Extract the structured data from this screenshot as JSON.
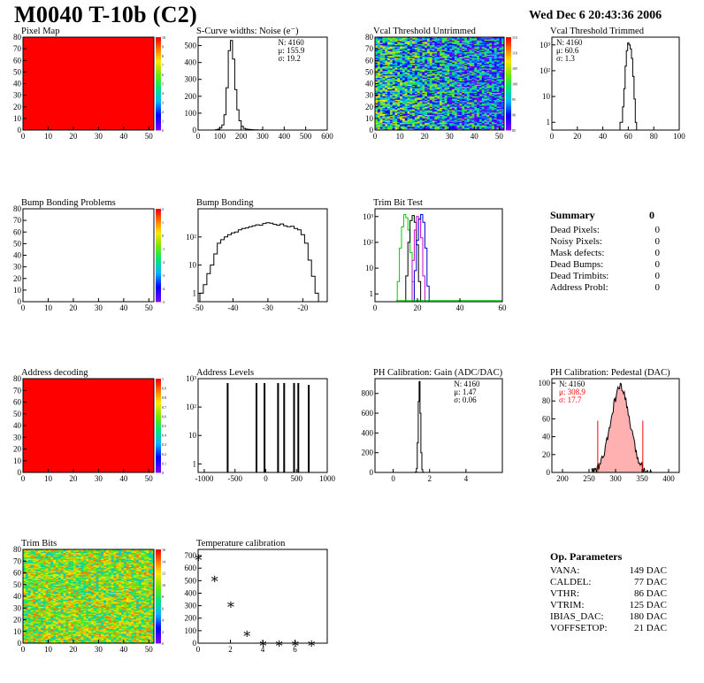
{
  "header": {
    "title": "M0040 T-10b (C2)",
    "timestamp": "Wed Dec  6 20:43:36 2006"
  },
  "summary": {
    "title": "Summary",
    "total": "0",
    "rows": [
      {
        "label": "Dead Pixels:",
        "value": "0"
      },
      {
        "label": "Noisy Pixels:",
        "value": "0"
      },
      {
        "label": "Mask defects:",
        "value": "0"
      },
      {
        "label": "Dead Bumps:",
        "value": "0"
      },
      {
        "label": "Dead Trimbits:",
        "value": "0"
      },
      {
        "label": "Address Probl:",
        "value": "0"
      }
    ]
  },
  "op_parameters": {
    "title": "Op. Parameters",
    "rows": [
      {
        "label": "VANA:",
        "value": "149 DAC"
      },
      {
        "label": "CALDEL:",
        "value": "77 DAC"
      },
      {
        "label": "VTHR:",
        "value": "86 DAC"
      },
      {
        "label": "VTRIM:",
        "value": "125 DAC"
      },
      {
        "label": "IBIAS_DAC:",
        "value": "180 DAC"
      },
      {
        "label": "VOFFSETOP:",
        "value": "21 DAC"
      }
    ]
  },
  "colors": {
    "frame": "#000000",
    "fill_red": "#ff0000",
    "pedestal_red": "#ff0000",
    "green": "#00cc00",
    "blue": "#0000cc",
    "magenta": "#cc00cc"
  },
  "chart_data": [
    {
      "id": "pixel-map",
      "type": "heatmap",
      "title": "Pixel Map",
      "xlim": [
        0,
        52
      ],
      "ylim": [
        0,
        80
      ],
      "xticks": [
        0,
        10,
        20,
        30,
        40,
        50
      ],
      "yticks": [
        0,
        10,
        20,
        30,
        40,
        50,
        60,
        70,
        80
      ],
      "uniform_value": 10,
      "zlim": [
        0,
        10
      ],
      "zticks": [
        "10",
        "9",
        "8",
        "7",
        "6",
        "5",
        "4",
        "3",
        "2",
        "1",
        "0"
      ]
    },
    {
      "id": "scurve-noise",
      "type": "histogram",
      "title": "S-Curve widths: Noise (e⁻)",
      "xlim": [
        0,
        600
      ],
      "ylim": [
        0,
        550
      ],
      "log": false,
      "xticks": [
        0,
        100,
        200,
        300,
        400,
        500,
        600
      ],
      "yticks": [
        0,
        100,
        200,
        300,
        400,
        500
      ],
      "stats": [
        "N: 4160",
        "μ: 155.9",
        "σ: 19.2"
      ],
      "bins_x": [
        85,
        95,
        105,
        115,
        125,
        135,
        145,
        155,
        165,
        175,
        185,
        195,
        205,
        215,
        225,
        235,
        245,
        255,
        265,
        275,
        285,
        295,
        305
      ],
      "bins_y": [
        2,
        5,
        12,
        30,
        90,
        250,
        470,
        530,
        420,
        240,
        120,
        55,
        22,
        10,
        6,
        4,
        3,
        2,
        1,
        1,
        0,
        1,
        0
      ]
    },
    {
      "id": "vcal-untrimmed",
      "type": "heatmap",
      "title": "Vcal Threshold Untrimmed",
      "xlim": [
        0,
        52
      ],
      "ylim": [
        0,
        80
      ],
      "xticks": [
        0,
        10,
        20,
        30,
        40,
        50
      ],
      "yticks": [
        0,
        10,
        20,
        30,
        40,
        50,
        60,
        70,
        80
      ],
      "zlim": [
        80,
        118
      ],
      "zticks": [
        "115",
        "110",
        "105",
        "100",
        "95",
        "90",
        "85"
      ],
      "pattern": "noise-gradient"
    },
    {
      "id": "vcal-trimmed",
      "type": "histogram",
      "title": "Vcal Threshold Trimmed",
      "xlim": [
        0,
        100
      ],
      "ylim": [
        0.5,
        2000
      ],
      "log": true,
      "xticks": [
        0,
        20,
        40,
        60,
        80,
        100
      ],
      "yticks": [
        1,
        10,
        100,
        1000
      ],
      "stats": [
        "N: 4160",
        "μ: 60.6",
        "σ:  1.3"
      ],
      "bins_x": [
        54,
        55,
        56,
        57,
        58,
        59,
        60,
        61,
        62,
        63,
        64,
        65,
        66
      ],
      "bins_y": [
        1,
        1,
        4,
        20,
        150,
        600,
        1200,
        1000,
        700,
        300,
        60,
        8,
        1
      ]
    },
    {
      "id": "bump-problems",
      "type": "heatmap",
      "title": "Bump Bonding Problems",
      "xlim": [
        0,
        52
      ],
      "ylim": [
        0,
        80
      ],
      "xticks": [
        0,
        10,
        20,
        30,
        40,
        50
      ],
      "yticks": [
        0,
        10,
        20,
        30,
        40,
        50,
        60,
        70,
        80
      ],
      "zlim": [
        -5,
        2
      ],
      "zticks": [
        "2",
        "1",
        "0",
        "-1",
        "-2",
        "-3",
        "-4",
        "-5"
      ],
      "empty": true
    },
    {
      "id": "bump-bonding",
      "type": "histogram",
      "title": "Bump Bonding",
      "xlim": [
        -50,
        -13
      ],
      "ylim": [
        0.5,
        1000
      ],
      "log": true,
      "xticks": [
        -50,
        -40,
        -30,
        -20
      ],
      "yticks": [
        1,
        10,
        100
      ],
      "bins_x": [
        -49,
        -48,
        -47,
        -46,
        -45,
        -44,
        -43,
        -42,
        -41,
        -40,
        -39,
        -38,
        -37,
        -36,
        -35,
        -34,
        -33,
        -32,
        -31,
        -30,
        -29,
        -28,
        -27,
        -26,
        -25,
        -24,
        -23,
        -22,
        -21,
        -20,
        -19,
        -18,
        -17,
        -16
      ],
      "bins_y": [
        1,
        2,
        5,
        10,
        25,
        60,
        80,
        100,
        120,
        140,
        150,
        180,
        200,
        210,
        230,
        250,
        270,
        260,
        300,
        320,
        310,
        280,
        260,
        290,
        250,
        230,
        240,
        200,
        180,
        120,
        60,
        15,
        4,
        1
      ]
    },
    {
      "id": "trim-bit-test",
      "type": "histogram",
      "title": "Trim Bit Test",
      "xlim": [
        0,
        60
      ],
      "ylim": [
        0.5,
        2000
      ],
      "log": true,
      "xticks": [
        0,
        20,
        40,
        60
      ],
      "yticks": [
        1,
        10,
        100,
        1000
      ],
      "series": [
        {
          "name": "",
          "color": "#00cc00",
          "bins_x": [
            10,
            11,
            12,
            13,
            14,
            15,
            16,
            17,
            18,
            19,
            20
          ],
          "bins_y": [
            0.3,
            3,
            60,
            400,
            1200,
            900,
            300,
            40,
            3,
            0.3,
            0.3
          ]
        },
        {
          "name": "",
          "color": "#000000",
          "bins_x": [
            14,
            15,
            16,
            17,
            18,
            19,
            20,
            21,
            22
          ],
          "bins_y": [
            0.3,
            5,
            100,
            700,
            1100,
            600,
            80,
            3,
            0.3
          ]
        },
        {
          "name": "",
          "color": "#cc00cc",
          "bins_x": [
            17,
            18,
            19,
            20,
            21,
            22,
            23,
            24
          ],
          "bins_y": [
            0.3,
            20,
            300,
            1000,
            800,
            150,
            5,
            0.3
          ]
        },
        {
          "name": "",
          "color": "#0000cc",
          "bins_x": [
            18,
            19,
            20,
            21,
            22,
            23,
            24,
            25,
            26
          ],
          "bins_y": [
            0.3,
            8,
            120,
            800,
            1200,
            600,
            60,
            2,
            0.3
          ]
        }
      ]
    },
    {
      "id": "address-decoding",
      "type": "heatmap",
      "title": "Address decoding",
      "xlim": [
        0,
        52
      ],
      "ylim": [
        0,
        80
      ],
      "xticks": [
        0,
        10,
        20,
        30,
        40,
        50
      ],
      "yticks": [
        0,
        10,
        20,
        30,
        40,
        50,
        60,
        70,
        80
      ],
      "uniform_value": 1,
      "zlim": [
        0,
        1
      ],
      "zticks": [
        "1",
        "0.9",
        "0.8",
        "0.7",
        "0.6",
        "0.5",
        "0.4",
        "0.3",
        "0.2",
        "0.1",
        "0"
      ]
    },
    {
      "id": "address-levels",
      "type": "histogram",
      "title": "Address Levels",
      "xlim": [
        -1100,
        1000
      ],
      "ylim": [
        0.5,
        1000
      ],
      "log": true,
      "xticks": [
        -1000,
        -500,
        0,
        500,
        1000
      ],
      "yticks": [
        1,
        10,
        100,
        1000
      ],
      "peaks_x": [
        -620,
        -150,
        -20,
        200,
        300,
        460,
        530,
        700
      ],
      "peaks_y": [
        700,
        700,
        700,
        700,
        700,
        700,
        700,
        600
      ]
    },
    {
      "id": "ph-gain",
      "type": "histogram",
      "title": "PH Calibration: Gain (ADC/DAC)",
      "xlim": [
        -1,
        6
      ],
      "ylim": [
        0,
        950
      ],
      "log": false,
      "xticks": [
        0,
        2,
        4
      ],
      "yticks": [
        0,
        200,
        400,
        600,
        800
      ],
      "stats": [
        "N: 4160",
        "μ: 1.47",
        "σ: 0.06"
      ],
      "bins_x": [
        1.25,
        1.3,
        1.35,
        1.4,
        1.45,
        1.5,
        1.55,
        1.6,
        1.65
      ],
      "bins_y": [
        5,
        40,
        300,
        720,
        920,
        600,
        200,
        30,
        3
      ]
    },
    {
      "id": "ph-pedestal",
      "type": "histogram",
      "title": "PH Calibration: Pedestal (DAC)",
      "xlim": [
        180,
        420
      ],
      "ylim": [
        0,
        105
      ],
      "log": false,
      "xticks": [
        200,
        250,
        300,
        350,
        400
      ],
      "yticks": [
        0,
        20,
        40,
        60,
        80,
        100
      ],
      "stats": [
        "N: 4160",
        "μ: 308.9",
        "σ: 17.7"
      ],
      "mean": 308.9,
      "sigma": 17.7
    },
    {
      "id": "trim-bits",
      "type": "heatmap",
      "title": "Trim Bits",
      "xlim": [
        0,
        52
      ],
      "ylim": [
        0,
        80
      ],
      "xticks": [
        0,
        10,
        20,
        30,
        40,
        50
      ],
      "yticks": [
        0,
        10,
        20,
        30,
        40,
        50,
        60,
        70,
        80
      ],
      "zlim": [
        0,
        16
      ],
      "zticks": [
        "16",
        "14",
        "12",
        "10",
        "8",
        "6",
        "4",
        "2",
        "0"
      ],
      "pattern": "noise-flat"
    },
    {
      "id": "temperature-calibration",
      "type": "scatter",
      "title": "Temperature calibration",
      "xlim": [
        0,
        8
      ],
      "ylim": [
        0,
        750
      ],
      "xticks": [
        0,
        2,
        4,
        6
      ],
      "yticks": [
        0,
        100,
        200,
        300,
        400,
        500,
        600,
        700
      ],
      "x": [
        0,
        1,
        2,
        3,
        4,
        5,
        6,
        7
      ],
      "y": [
        690,
        520,
        315,
        80,
        5,
        5,
        5,
        5
      ]
    }
  ]
}
